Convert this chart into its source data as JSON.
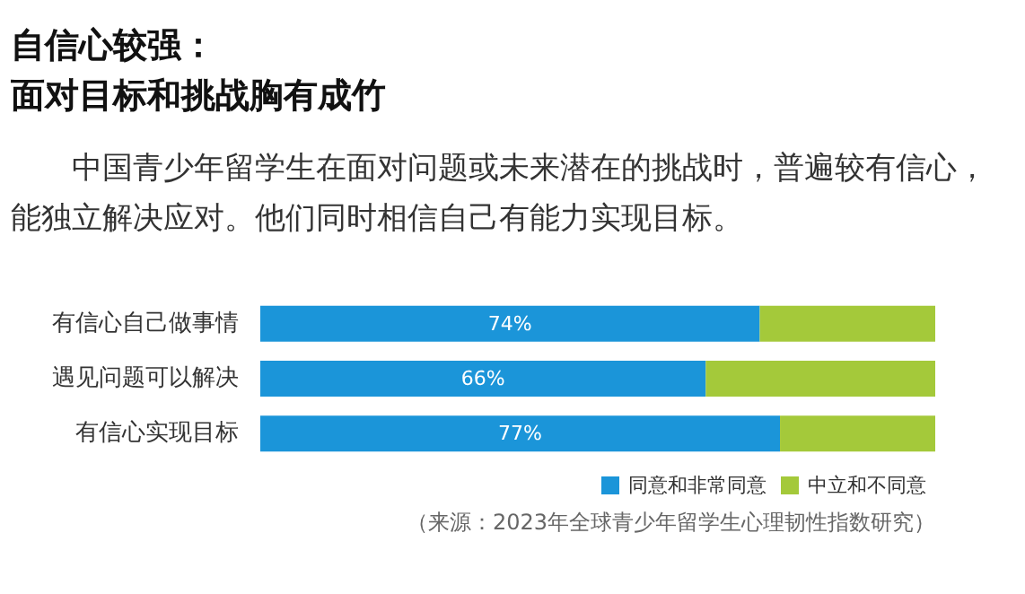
{
  "chart_data": {
    "type": "bar",
    "orientation": "horizontal",
    "stacked": true,
    "title": "自信心较强：",
    "subtitle": "面对目标和挑战胸有成竹",
    "annotations": [
      "中国青少年留学生在面对问题或未来潜在的挑战时，普遍较有信心，能独立解决应对。他们同时相信自己有能力实现目标。",
      "（来源：2023年全球青少年留学生心理韧性指数研究）"
    ],
    "categories": [
      "有信心自己做事情",
      "遇见问题可以解决",
      "有信心实现目标"
    ],
    "series": [
      {
        "name": "同意和非常同意",
        "color": "#1b95d9",
        "values": [
          74,
          66,
          77
        ],
        "value_labels": [
          "74%",
          "66%",
          "77%"
        ]
      },
      {
        "name": "中立和不同意",
        "color": "#a4c93a",
        "values": [
          26,
          34,
          23
        ]
      }
    ],
    "xlim": [
      0,
      100
    ],
    "tick_labels": "y",
    "legend": "bottom right"
  }
}
